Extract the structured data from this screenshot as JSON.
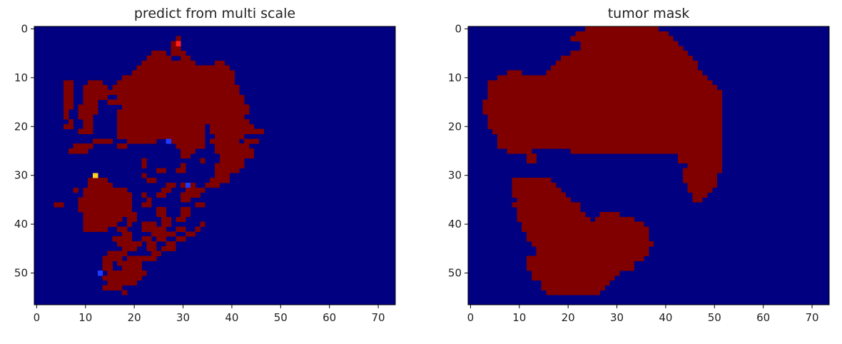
{
  "figure": {
    "background": "#ffffff",
    "colormap": "jet"
  },
  "chart_data": [
    {
      "type": "heatmap",
      "title": "predict from multi scale",
      "xlabel": "",
      "ylabel": "",
      "grid": false,
      "shape": [
        57,
        74
      ],
      "xlim": [
        -0.5,
        73.5
      ],
      "ylim": [
        56.5,
        -0.5
      ],
      "xticks": [
        0,
        10,
        20,
        30,
        40,
        50,
        60,
        70
      ],
      "yticks": [
        0,
        10,
        20,
        30,
        40,
        50
      ],
      "background_value": 0,
      "tumor_value": 1,
      "colors": {
        "background": "#000080",
        "tumor": "#800000",
        "red_pixel": "#ff1e1e",
        "yellow_pixel": "#ffd21e",
        "blue_pixel": "#1e3cff"
      },
      "point_values": [
        {
          "x": 29,
          "y": 3,
          "value": "red_pixel"
        },
        {
          "x": 12,
          "y": 30,
          "value": "yellow_pixel"
        },
        {
          "x": 27,
          "y": 23,
          "value": "blue_pixel"
        },
        {
          "x": 31,
          "y": 32,
          "value": "blue_pixel"
        },
        {
          "x": 13,
          "y": 50,
          "value": "blue_pixel"
        }
      ],
      "tumor_runs": [
        [
          2,
          29,
          29
        ],
        [
          3,
          28,
          29
        ],
        [
          4,
          28,
          29
        ],
        [
          5,
          24,
          26
        ],
        [
          5,
          28,
          30
        ],
        [
          6,
          23,
          27
        ],
        [
          6,
          30,
          31
        ],
        [
          7,
          22,
          32
        ],
        [
          7,
          37,
          38
        ],
        [
          8,
          21,
          39
        ],
        [
          9,
          20,
          40
        ],
        [
          10,
          18,
          40
        ],
        [
          11,
          6,
          7
        ],
        [
          11,
          11,
          13
        ],
        [
          11,
          17,
          40
        ],
        [
          12,
          6,
          7
        ],
        [
          12,
          10,
          14
        ],
        [
          12,
          16,
          41
        ],
        [
          13,
          6,
          7
        ],
        [
          13,
          10,
          41
        ],
        [
          14,
          6,
          7
        ],
        [
          14,
          10,
          14
        ],
        [
          14,
          17,
          42
        ],
        [
          15,
          6,
          7
        ],
        [
          15,
          10,
          12
        ],
        [
          15,
          15,
          17
        ],
        [
          15,
          18,
          42
        ],
        [
          16,
          6,
          7
        ],
        [
          16,
          9,
          12
        ],
        [
          16,
          18,
          43
        ],
        [
          17,
          6,
          6
        ],
        [
          17,
          9,
          12
        ],
        [
          17,
          17,
          43
        ],
        [
          18,
          6,
          6
        ],
        [
          18,
          9,
          11
        ],
        [
          18,
          17,
          42
        ],
        [
          19,
          7,
          7
        ],
        [
          19,
          10,
          11
        ],
        [
          19,
          17,
          43
        ],
        [
          20,
          6,
          7
        ],
        [
          20,
          10,
          11
        ],
        [
          20,
          17,
          34
        ],
        [
          20,
          36,
          44
        ],
        [
          21,
          9,
          11
        ],
        [
          21,
          17,
          34
        ],
        [
          21,
          36,
          44
        ],
        [
          21,
          45,
          46
        ],
        [
          22,
          17,
          34
        ],
        [
          22,
          37,
          42
        ],
        [
          23,
          12,
          15
        ],
        [
          23,
          19,
          24
        ],
        [
          23,
          28,
          34
        ],
        [
          23,
          36,
          41
        ],
        [
          23,
          43,
          45
        ],
        [
          24,
          8,
          11
        ],
        [
          24,
          17,
          18
        ],
        [
          24,
          29,
          34
        ],
        [
          24,
          37,
          43
        ],
        [
          25,
          7,
          10
        ],
        [
          25,
          30,
          32
        ],
        [
          25,
          37,
          44
        ],
        [
          26,
          30,
          31
        ],
        [
          26,
          38,
          44
        ],
        [
          27,
          22,
          22
        ],
        [
          27,
          34,
          34
        ],
        [
          27,
          38,
          42
        ],
        [
          28,
          22,
          22
        ],
        [
          28,
          30,
          30
        ],
        [
          28,
          37,
          42
        ],
        [
          29,
          25,
          26
        ],
        [
          29,
          29,
          30
        ],
        [
          29,
          37,
          41
        ],
        [
          30,
          22,
          22
        ],
        [
          30,
          37,
          39
        ],
        [
          31,
          11,
          14
        ],
        [
          31,
          23,
          24
        ],
        [
          31,
          36,
          39
        ],
        [
          32,
          11,
          15
        ],
        [
          32,
          27,
          28
        ],
        [
          32,
          30,
          32
        ],
        [
          32,
          35,
          37
        ],
        [
          33,
          8,
          8
        ],
        [
          33,
          10,
          18
        ],
        [
          33,
          26,
          27
        ],
        [
          33,
          31,
          34
        ],
        [
          34,
          10,
          19
        ],
        [
          34,
          22,
          22
        ],
        [
          34,
          25,
          26
        ],
        [
          34,
          30,
          33
        ],
        [
          35,
          9,
          19
        ],
        [
          35,
          23,
          23
        ],
        [
          35,
          30,
          31
        ],
        [
          36,
          4,
          5
        ],
        [
          36,
          9,
          19
        ],
        [
          36,
          22,
          23
        ],
        [
          36,
          33,
          34
        ],
        [
          37,
          9,
          19
        ],
        [
          37,
          25,
          26
        ],
        [
          37,
          30,
          31
        ],
        [
          38,
          10,
          20
        ],
        [
          38,
          25,
          26
        ],
        [
          38,
          30,
          31
        ],
        [
          39,
          10,
          17
        ],
        [
          39,
          19,
          20
        ],
        [
          39,
          26,
          27
        ],
        [
          39,
          29,
          30
        ],
        [
          40,
          10,
          16
        ],
        [
          40,
          19,
          19
        ],
        [
          40,
          22,
          24
        ],
        [
          40,
          26,
          27
        ],
        [
          40,
          34,
          34
        ],
        [
          41,
          10,
          14
        ],
        [
          41,
          17,
          18
        ],
        [
          41,
          22,
          26
        ],
        [
          41,
          29,
          30
        ],
        [
          41,
          33,
          33
        ],
        [
          42,
          18,
          19
        ],
        [
          42,
          24,
          28
        ],
        [
          42,
          31,
          32
        ],
        [
          43,
          16,
          19
        ],
        [
          43,
          22,
          23
        ],
        [
          43,
          25,
          26
        ],
        [
          43,
          29,
          30
        ],
        [
          44,
          17,
          21
        ],
        [
          44,
          23,
          24
        ],
        [
          44,
          27,
          28
        ],
        [
          45,
          18,
          20
        ],
        [
          45,
          23,
          24
        ],
        [
          45,
          26,
          28
        ],
        [
          46,
          15,
          18
        ],
        [
          46,
          24,
          25
        ],
        [
          47,
          14,
          17
        ],
        [
          47,
          19,
          24
        ],
        [
          48,
          14,
          15
        ],
        [
          48,
          17,
          21
        ],
        [
          49,
          14,
          15
        ],
        [
          49,
          18,
          21
        ],
        [
          50,
          15,
          22
        ],
        [
          51,
          14,
          21
        ],
        [
          52,
          15,
          20
        ],
        [
          53,
          14,
          17
        ],
        [
          54,
          18,
          18
        ]
      ]
    },
    {
      "type": "heatmap",
      "title": "tumor mask",
      "xlabel": "",
      "ylabel": "",
      "grid": false,
      "shape": [
        57,
        74
      ],
      "xlim": [
        -0.5,
        73.5
      ],
      "ylim": [
        56.5,
        -0.5
      ],
      "xticks": [
        0,
        10,
        20,
        30,
        40,
        50,
        60,
        70
      ],
      "yticks": [
        0,
        10,
        20,
        30,
        40,
        50
      ],
      "background_value": 0,
      "tumor_value": 1,
      "colors": {
        "background": "#000080",
        "tumor": "#800000"
      },
      "tumor_runs": [
        [
          0,
          24,
          38
        ],
        [
          1,
          22,
          40
        ],
        [
          2,
          21,
          41
        ],
        [
          3,
          23,
          42
        ],
        [
          4,
          23,
          43
        ],
        [
          5,
          21,
          44
        ],
        [
          6,
          19,
          45
        ],
        [
          7,
          18,
          46
        ],
        [
          8,
          17,
          46
        ],
        [
          9,
          8,
          10
        ],
        [
          9,
          16,
          47
        ],
        [
          10,
          6,
          48
        ],
        [
          11,
          4,
          49
        ],
        [
          12,
          4,
          50
        ],
        [
          13,
          4,
          51
        ],
        [
          14,
          4,
          51
        ],
        [
          15,
          3,
          51
        ],
        [
          16,
          3,
          51
        ],
        [
          17,
          3,
          51
        ],
        [
          18,
          4,
          51
        ],
        [
          19,
          4,
          51
        ],
        [
          20,
          4,
          51
        ],
        [
          21,
          5,
          51
        ],
        [
          22,
          6,
          51
        ],
        [
          23,
          6,
          51
        ],
        [
          24,
          6,
          51
        ],
        [
          25,
          8,
          12
        ],
        [
          25,
          21,
          51
        ],
        [
          26,
          12,
          13
        ],
        [
          26,
          43,
          51
        ],
        [
          27,
          12,
          13
        ],
        [
          27,
          43,
          51
        ],
        [
          28,
          45,
          51
        ],
        [
          29,
          44,
          51
        ],
        [
          30,
          44,
          50
        ],
        [
          31,
          9,
          16
        ],
        [
          31,
          44,
          50
        ],
        [
          32,
          9,
          17
        ],
        [
          32,
          45,
          50
        ],
        [
          33,
          9,
          18
        ],
        [
          33,
          45,
          49
        ],
        [
          34,
          9,
          19
        ],
        [
          34,
          46,
          48
        ],
        [
          35,
          10,
          20
        ],
        [
          35,
          46,
          47
        ],
        [
          36,
          9,
          22
        ],
        [
          37,
          10,
          22
        ],
        [
          38,
          10,
          23
        ],
        [
          38,
          27,
          30
        ],
        [
          39,
          10,
          24
        ],
        [
          39,
          26,
          33
        ],
        [
          40,
          11,
          35
        ],
        [
          41,
          11,
          36
        ],
        [
          42,
          12,
          36
        ],
        [
          43,
          12,
          36
        ],
        [
          44,
          13,
          37
        ],
        [
          45,
          14,
          36
        ],
        [
          46,
          14,
          36
        ],
        [
          47,
          12,
          35
        ],
        [
          48,
          12,
          33
        ],
        [
          49,
          12,
          33
        ],
        [
          50,
          13,
          30
        ],
        [
          51,
          13,
          29
        ],
        [
          52,
          15,
          28
        ],
        [
          53,
          15,
          27
        ],
        [
          54,
          16,
          26
        ]
      ]
    }
  ]
}
